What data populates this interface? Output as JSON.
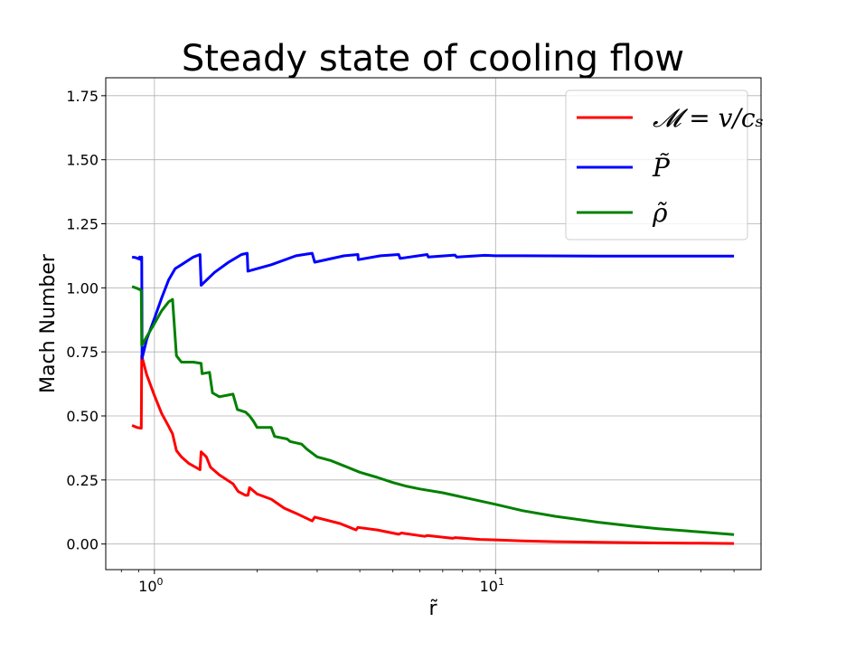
{
  "chart_data": {
    "type": "line",
    "title": "Steady state of cooling flow",
    "xlabel": "r̃",
    "ylabel": "Mach Number",
    "xscale": "log",
    "xlim": [
      0.72,
      60
    ],
    "ylim": [
      -0.1,
      1.82
    ],
    "grid": true,
    "legend_position": "top-right",
    "xticks": [
      {
        "value": 1,
        "label_base": "10",
        "label_exp": "0"
      },
      {
        "value": 10,
        "label_base": "10",
        "label_exp": "1"
      }
    ],
    "yticks": [
      {
        "value": 0.0,
        "label": "0.00"
      },
      {
        "value": 0.25,
        "label": "0.25"
      },
      {
        "value": 0.5,
        "label": "0.50"
      },
      {
        "value": 0.75,
        "label": "0.75"
      },
      {
        "value": 1.0,
        "label": "1.00"
      },
      {
        "value": 1.25,
        "label": "1.25"
      },
      {
        "value": 1.5,
        "label": "1.50"
      },
      {
        "value": 1.75,
        "label": "1.75"
      }
    ],
    "series": [
      {
        "name": "𝓜 = v/cₛ",
        "color": "#ff0000",
        "points": [
          [
            0.86,
            0.463
          ],
          [
            0.89,
            0.455
          ],
          [
            0.915,
            0.452
          ],
          [
            0.918,
            0.735
          ],
          [
            0.95,
            0.66
          ],
          [
            1.0,
            0.58
          ],
          [
            1.05,
            0.51
          ],
          [
            1.1,
            0.46
          ],
          [
            1.13,
            0.43
          ],
          [
            1.16,
            0.365
          ],
          [
            1.2,
            0.34
          ],
          [
            1.26,
            0.315
          ],
          [
            1.36,
            0.29
          ],
          [
            1.37,
            0.36
          ],
          [
            1.42,
            0.34
          ],
          [
            1.46,
            0.3
          ],
          [
            1.55,
            0.27
          ],
          [
            1.7,
            0.235
          ],
          [
            1.76,
            0.205
          ],
          [
            1.85,
            0.19
          ],
          [
            1.88,
            0.19
          ],
          [
            1.9,
            0.22
          ],
          [
            2.0,
            0.195
          ],
          [
            2.2,
            0.175
          ],
          [
            2.4,
            0.14
          ],
          [
            2.6,
            0.12
          ],
          [
            2.9,
            0.09
          ],
          [
            2.95,
            0.105
          ],
          [
            3.5,
            0.08
          ],
          [
            3.9,
            0.055
          ],
          [
            3.95,
            0.065
          ],
          [
            4.5,
            0.055
          ],
          [
            5.2,
            0.038
          ],
          [
            5.3,
            0.043
          ],
          [
            6.2,
            0.03
          ],
          [
            6.3,
            0.033
          ],
          [
            7.5,
            0.022
          ],
          [
            7.6,
            0.025
          ],
          [
            9.0,
            0.018
          ],
          [
            10.0,
            0.016
          ],
          [
            12.0,
            0.012
          ],
          [
            15.0,
            0.009
          ],
          [
            20.0,
            0.007
          ],
          [
            30.0,
            0.004
          ],
          [
            40.0,
            0.003
          ],
          [
            50.0,
            0.002
          ]
        ]
      },
      {
        "name": "P̃",
        "color": "#0000ff",
        "points": [
          [
            0.86,
            1.12
          ],
          [
            0.88,
            1.118
          ],
          [
            0.9,
            1.113
          ],
          [
            0.905,
            1.12
          ],
          [
            0.912,
            1.11
          ],
          [
            0.918,
            1.12
          ],
          [
            0.92,
            0.725
          ],
          [
            0.95,
            0.8
          ],
          [
            1.0,
            0.88
          ],
          [
            1.05,
            0.96
          ],
          [
            1.1,
            1.03
          ],
          [
            1.15,
            1.075
          ],
          [
            1.2,
            1.09
          ],
          [
            1.3,
            1.12
          ],
          [
            1.36,
            1.13
          ],
          [
            1.37,
            1.01
          ],
          [
            1.5,
            1.06
          ],
          [
            1.65,
            1.1
          ],
          [
            1.8,
            1.13
          ],
          [
            1.87,
            1.135
          ],
          [
            1.88,
            1.065
          ],
          [
            2.2,
            1.09
          ],
          [
            2.6,
            1.125
          ],
          [
            2.9,
            1.135
          ],
          [
            2.95,
            1.1
          ],
          [
            3.6,
            1.125
          ],
          [
            3.95,
            1.13
          ],
          [
            3.96,
            1.11
          ],
          [
            4.6,
            1.125
          ],
          [
            5.2,
            1.13
          ],
          [
            5.25,
            1.115
          ],
          [
            6.3,
            1.13
          ],
          [
            6.35,
            1.12
          ],
          [
            7.6,
            1.128
          ],
          [
            7.7,
            1.12
          ],
          [
            9.3,
            1.127
          ],
          [
            10.0,
            1.125
          ],
          [
            12.0,
            1.125
          ],
          [
            20.0,
            1.124
          ],
          [
            30.0,
            1.124
          ],
          [
            50.0,
            1.124
          ]
        ]
      },
      {
        "name": "ρ̃",
        "color": "#008000",
        "points": [
          [
            0.86,
            1.005
          ],
          [
            0.89,
            0.998
          ],
          [
            0.915,
            0.99
          ],
          [
            0.918,
            0.775
          ],
          [
            0.95,
            0.81
          ],
          [
            1.0,
            0.86
          ],
          [
            1.05,
            0.91
          ],
          [
            1.1,
            0.945
          ],
          [
            1.13,
            0.955
          ],
          [
            1.16,
            0.735
          ],
          [
            1.2,
            0.71
          ],
          [
            1.3,
            0.71
          ],
          [
            1.37,
            0.705
          ],
          [
            1.38,
            0.665
          ],
          [
            1.45,
            0.67
          ],
          [
            1.48,
            0.59
          ],
          [
            1.55,
            0.575
          ],
          [
            1.7,
            0.585
          ],
          [
            1.75,
            0.525
          ],
          [
            1.85,
            0.515
          ],
          [
            1.9,
            0.5
          ],
          [
            1.95,
            0.48
          ],
          [
            2.0,
            0.455
          ],
          [
            2.2,
            0.455
          ],
          [
            2.25,
            0.42
          ],
          [
            2.45,
            0.41
          ],
          [
            2.5,
            0.4
          ],
          [
            2.7,
            0.39
          ],
          [
            2.8,
            0.37
          ],
          [
            3.0,
            0.34
          ],
          [
            3.3,
            0.325
          ],
          [
            3.6,
            0.305
          ],
          [
            4.0,
            0.28
          ],
          [
            4.5,
            0.26
          ],
          [
            5.0,
            0.24
          ],
          [
            5.5,
            0.225
          ],
          [
            6.0,
            0.215
          ],
          [
            7.0,
            0.2
          ],
          [
            8.0,
            0.183
          ],
          [
            10.0,
            0.155
          ],
          [
            12.0,
            0.13
          ],
          [
            15.0,
            0.108
          ],
          [
            20.0,
            0.085
          ],
          [
            25.0,
            0.07
          ],
          [
            30.0,
            0.06
          ],
          [
            40.0,
            0.047
          ],
          [
            50.0,
            0.037
          ]
        ]
      }
    ]
  }
}
